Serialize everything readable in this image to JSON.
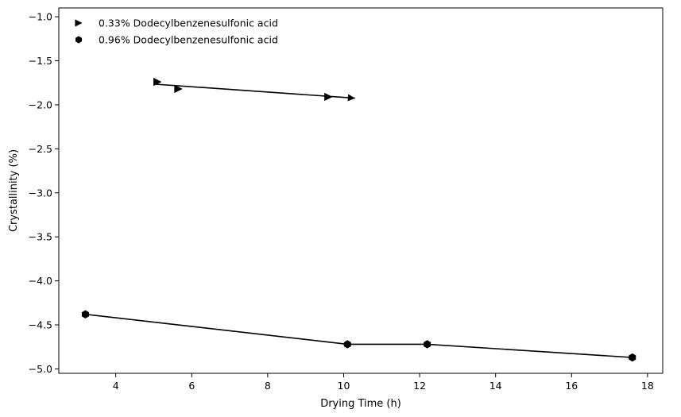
{
  "chart_data": {
    "type": "scatter",
    "xlabel": "Drying Time (h)",
    "ylabel": "Crystallinity (%)",
    "xlim": [
      2.5,
      18.4
    ],
    "ylim": [
      -5.05,
      -0.9
    ],
    "xticks": [
      4,
      6,
      8,
      10,
      12,
      14,
      16,
      18
    ],
    "yticks": [
      -1.0,
      -1.5,
      -2.0,
      -2.5,
      -3.0,
      -3.5,
      -4.0,
      -4.5,
      -5.0
    ],
    "xtick_labels": [
      "4",
      "6",
      "8",
      "10",
      "12",
      "14",
      "16",
      "18"
    ],
    "ytick_labels": [
      "−1.0",
      "−1.5",
      "−2.0",
      "−2.5",
      "−3.0",
      "−3.5",
      "−4.0",
      "−4.5",
      "−5.0"
    ],
    "grid": false,
    "legend_position": "top-left",
    "series": [
      {
        "name": "0.33% Dodecylbenzenesulfonic acid",
        "marker": "triangle-right",
        "color": "#000000",
        "points": [
          {
            "x": 5.1,
            "y": -1.74
          },
          {
            "x": 5.65,
            "y": -1.82
          },
          {
            "x": 9.6,
            "y": -1.91
          },
          {
            "x": 10.3,
            "y": -1.92
          }
        ],
        "line": [
          [
            5.0,
            -1.765
          ],
          [
            10.3,
            -1.925
          ]
        ]
      },
      {
        "name": "0.96% Dodecylbenzenesulfonic acid",
        "marker": "hexagon",
        "color": "#000000",
        "points": [
          {
            "x": 3.2,
            "y": -4.38
          },
          {
            "x": 10.1,
            "y": -4.72
          },
          {
            "x": 12.2,
            "y": -4.72
          },
          {
            "x": 17.6,
            "y": -4.87
          }
        ],
        "line": [
          [
            3.2,
            -4.38
          ],
          [
            10.1,
            -4.72
          ],
          [
            12.2,
            -4.72
          ],
          [
            17.6,
            -4.87
          ]
        ]
      }
    ]
  }
}
